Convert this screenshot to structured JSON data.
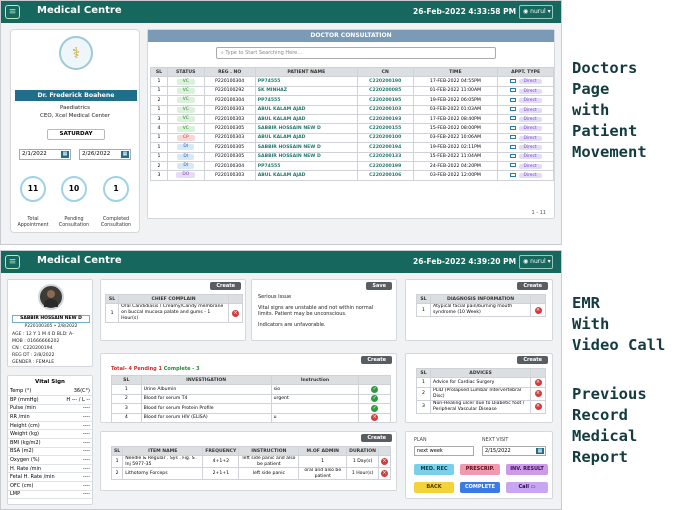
{
  "app": {
    "brand": "Medical Centre",
    "user": "nurul"
  },
  "screen1": {
    "datetime": "26-Feb-2022 4:33:58 PM",
    "doctor": {
      "name": "Dr. Frederick Boahene",
      "dept": "Paediatrics",
      "role": "CEO, Xcel Medical Center",
      "day": "SATURDAY",
      "date_from": "2/1/2022",
      "date_to": "2/26/2022"
    },
    "stats": [
      {
        "value": "11",
        "label1": "Total",
        "label2": "Appointment"
      },
      {
        "value": "10",
        "label1": "Pending",
        "label2": "Consultation"
      },
      {
        "value": "1",
        "label1": "Completed",
        "label2": "Consultation"
      }
    ],
    "consult": {
      "title": "DOCTOR CONSULTATION",
      "search_placeholder": "Type to Start Searching Here...",
      "pagination": "1 - 11",
      "headers": [
        "SL",
        "STATUS",
        "REG . NO",
        "PATIENT NAME",
        "CN",
        "TIME",
        "APPT. TYPE"
      ],
      "rows": [
        {
          "sl": "1",
          "status": "VC",
          "cls": "vc",
          "reg": "P220100304",
          "name": "PP74555",
          "cn": "C220200190",
          "time": "17-FEB-2022 04:55PM",
          "appt": "Direct"
        },
        {
          "sl": "1",
          "status": "VC",
          "cls": "vc",
          "reg": "P220100292",
          "name": "SK MINHAZ",
          "cn": "C220200085",
          "time": "01-FEB-2022 11:00AM",
          "appt": "Direct"
        },
        {
          "sl": "2",
          "status": "VC",
          "cls": "vc",
          "reg": "P220100304",
          "name": "PP74555",
          "cn": "C220200195",
          "time": "19-FEB-2022 06:05PM",
          "appt": "Direct"
        },
        {
          "sl": "1",
          "status": "VC",
          "cls": "vc",
          "reg": "P220100303",
          "name": "ABUL KALAM AJAD",
          "cn": "C220200103",
          "time": "03-FEB-2022 01:03AM",
          "appt": "Direct"
        },
        {
          "sl": "3",
          "status": "VC",
          "cls": "vc",
          "reg": "P220100303",
          "name": "ABUL KALAM AJAD",
          "cn": "C220200193",
          "time": "17-FEB-2022 08:40PM",
          "appt": "Direct"
        },
        {
          "sl": "4",
          "status": "VC",
          "cls": "vc",
          "reg": "P220100305",
          "name": "SABBIR HOSSAIN NEW D",
          "cn": "C220200155",
          "time": "15-FEB-2022 08:00PM",
          "appt": "Direct"
        },
        {
          "sl": "1",
          "status": "CP",
          "cls": "cp",
          "reg": "P220100303",
          "name": "ABUL KALAM AJAD",
          "cn": "C220200100",
          "time": "03-FEB-2022 10:06AM",
          "appt": "Direct"
        },
        {
          "sl": "1",
          "status": "DI",
          "cls": "di",
          "reg": "P220100305",
          "name": "SABBIR HOSSAIN NEW D",
          "cn": "C220200194",
          "time": "19-FEB-2022 02:11PM",
          "appt": "Direct"
        },
        {
          "sl": "1",
          "status": "DI",
          "cls": "di",
          "reg": "P220100305",
          "name": "SABBIR HOSSAIN NEW D",
          "cn": "C220200133",
          "time": "15-FEB-2022 11:04AM",
          "appt": "Direct"
        },
        {
          "sl": "2",
          "status": "DI",
          "cls": "di",
          "reg": "P220100304",
          "name": "PP74555",
          "cn": "C220200199",
          "time": "24-FEB-2022 04:20PM",
          "appt": "Direct"
        },
        {
          "sl": "3",
          "status": "DO",
          "cls": "do",
          "reg": "P220100303",
          "name": "ABUL KALAM AJAD",
          "cn": "C220200106",
          "time": "03-FEB-2022 12:00PM",
          "appt": "Direct"
        }
      ]
    }
  },
  "screen2": {
    "datetime": "26-Feb-2022 4:39:20 PM",
    "patient": {
      "name": "SABBIR HOSSAIN NEW D",
      "reg": "P220100305 • 2/8/2022",
      "age": "AGE   : 12 Y 1 M 4 D   BLD: A-",
      "mob": "MOB   : 01666666202",
      "cn": "CN : C220200194",
      "regdt": "REG DT : 2/8/2022",
      "gender": "GENDER : FEMALE"
    },
    "vital_title": "Vital Sign",
    "vitals": [
      [
        "Temp (°)",
        "36(C°)"
      ],
      [
        "BP (mmHg)",
        "H --- / L --"
      ],
      [
        "Pulse /min",
        "----"
      ],
      [
        "RR /min",
        "----"
      ],
      [
        "Height (cm)",
        "----"
      ],
      [
        "Weight (kg)",
        "----"
      ],
      [
        "BMI (kg/m2)",
        "----"
      ],
      [
        "BSA (m2)",
        "----"
      ],
      [
        "Oxygen (%)",
        "----"
      ],
      [
        "H. Rate /min",
        "----"
      ],
      [
        "Fetal H. Rate /min",
        "----"
      ],
      [
        "OFC (cm)",
        "----"
      ],
      [
        "LMP",
        "----"
      ]
    ],
    "chief": {
      "create": "Create",
      "headers": [
        "SL",
        "CHIEF COMPLAIN"
      ],
      "rows": [
        [
          "1",
          "Oral Candidiasis / Creamy/Candy membrane on buccal mucosa palate and gums - 1 Hour(s)"
        ]
      ]
    },
    "notes": {
      "save": "Save",
      "lines": [
        "Serious Issue",
        "Vital signs are unstable and not within normal limits. Patient may be unconscious.",
        "Indicators are unfavorable."
      ]
    },
    "diagnosis": {
      "create": "Create",
      "headers": [
        "SL",
        "DIAGNOSIS INFORMATION"
      ],
      "rows": [
        [
          "1",
          "Atypical facial pain/burning mouth syndrome (10 Week)"
        ]
      ]
    },
    "investigation": {
      "create": "Create",
      "summary_total": "Total- 4",
      "summary_pending": "Pending 1",
      "summary_complete": "Complete - 3",
      "headers": [
        "SL",
        "INVESTIGATION",
        "Instruction"
      ],
      "rows": [
        [
          "1",
          "Urine Albumin",
          "sio",
          "ok"
        ],
        [
          "2",
          "Blood for serum T4",
          "urgent",
          "ok"
        ],
        [
          "3",
          "Blood for serum Protein Profile",
          "",
          "ok"
        ],
        [
          "4",
          "Blood for serum HIV (ELISA)",
          "u",
          "del"
        ]
      ]
    },
    "advices": {
      "create": "Create",
      "headers": [
        "SL",
        "ADVICES"
      ],
      "rows": [
        [
          "1",
          "Advice for Cardiac Surgery"
        ],
        [
          "2",
          "PLID (Prolapsed Lumbar Intervertebral Disc)"
        ],
        [
          "3",
          "Non-Healing ulcer due to Diabetic foot / Peripheral Vascular Disease"
        ]
      ]
    },
    "items": {
      "create": "Create",
      "headers": [
        "SL",
        "ITEM NAME",
        "FREQUENCY",
        "INSTRUCTION",
        "M.OF ADMIN",
        "DURATION"
      ],
      "rows": [
        [
          "1",
          "Needle & Regular . Sys . Fig. S . Inj 5977-35",
          "4+1+2",
          "left side panic and also be patient",
          "1",
          "1 Day(s)"
        ],
        [
          "2",
          "Lithotomy Forceps",
          "2+1+1",
          "left side panic",
          "oral and also be patient",
          "1 Hour(s)"
        ]
      ]
    },
    "plan": {
      "plan_label": "PLAN",
      "plan_value": "next week",
      "next_label": "NEXT VISIT",
      "next_value": "2/15/2022"
    },
    "actions": {
      "med_rec": "MED. REC",
      "prescrip": "PRESCRIP.",
      "inv_result": "INV. RESULT",
      "back": "BACK",
      "complete": "COMPLETE",
      "call": "Call"
    }
  },
  "captions": {
    "c1": [
      "Doctors",
      "Page",
      "with",
      "Patient",
      "Movement"
    ],
    "c2": [
      "EMR",
      "With",
      "Video Call"
    ],
    "c3": [
      "Previous",
      "Record",
      "Medical",
      "Report"
    ]
  },
  "colors": {
    "topbar": "#16675d",
    "accent": "#1f7a6e",
    "vc": "#d9f2d9",
    "cp": "#f8d7d7",
    "di": "#d7e8f8",
    "do": "#e8dbf5"
  }
}
